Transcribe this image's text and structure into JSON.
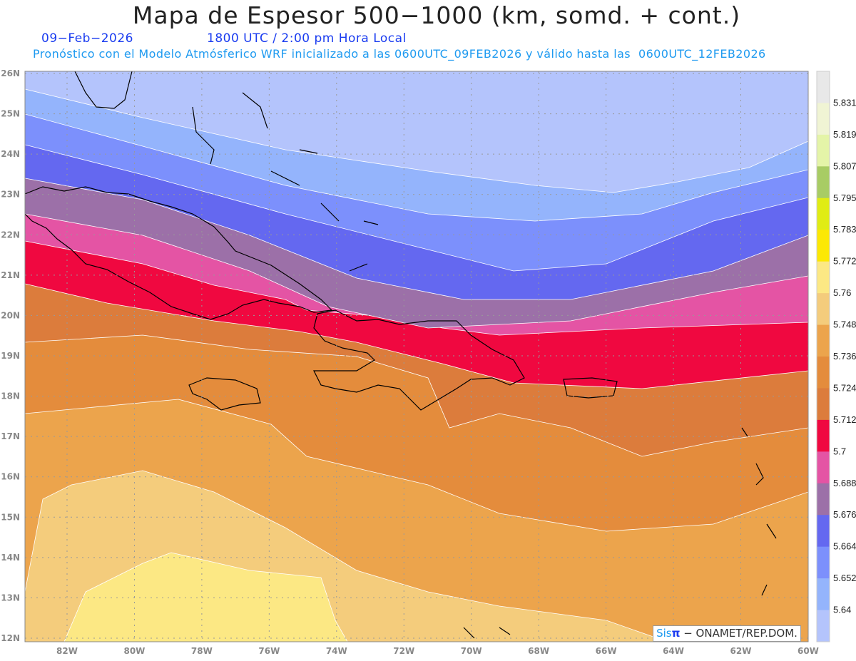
{
  "header": {
    "title": "Mapa de Espesor 500−1000 (km, somd. + cont.)",
    "date": "09−Feb−2026",
    "time": "1800 UTC / 2:00 pm Hora Local",
    "forecast_note": "Pronóstico con el Modelo Atmósferico WRF inicializado a las 0600UTC_09FEB2026 y válido hasta las  0600UTC_12FEB2026"
  },
  "axes": {
    "lon_labels": [
      "82W",
      "80W",
      "78W",
      "76W",
      "74W",
      "72W",
      "70W",
      "68W",
      "66W",
      "64W",
      "62W",
      "60W"
    ],
    "lat_labels": [
      "26N",
      "25N",
      "24N",
      "23N",
      "22N",
      "21N",
      "20N",
      "19N",
      "18N",
      "17N",
      "16N",
      "15N",
      "14N",
      "13N",
      "12N"
    ]
  },
  "colorbar": {
    "labels": [
      "5.831",
      "5.819",
      "5.807",
      "5.795",
      "5.783",
      "5.772",
      "5.76",
      "5.748",
      "5.736",
      "5.724",
      "5.712",
      "5.7",
      "5.688",
      "5.676",
      "5.664",
      "5.652",
      "5.64"
    ],
    "colors": [
      "#e8e8e8",
      "#f0f4d4",
      "#e4f4a8",
      "#a8cc64",
      "#e0ec14",
      "#fce804",
      "#fce884",
      "#f4cc7c",
      "#eca44c",
      "#e48c3c",
      "#dc7c3c",
      "#f00840",
      "#e454a4",
      "#9c70a8",
      "#6468f0",
      "#7c90fc",
      "#94b4fc",
      "#b4c4fc"
    ]
  },
  "logo": {
    "sis": "Sis",
    "pi": "π",
    "text": " − ONAMET/REP.DOM."
  }
}
